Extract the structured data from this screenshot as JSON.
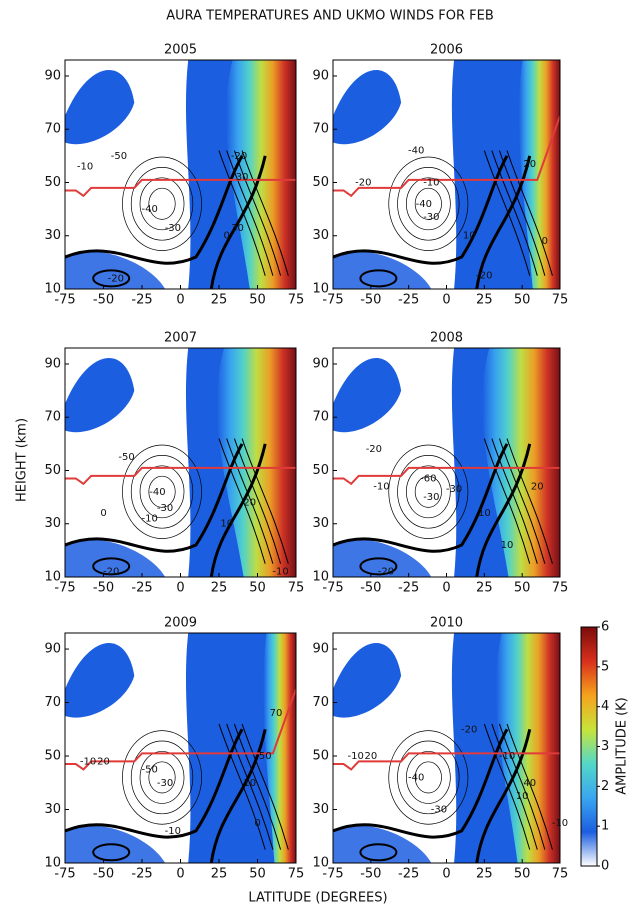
{
  "figure": {
    "title": "AURA TEMPERATURES AND UKMO WINDS FOR  FEB",
    "x_label": "LATITUDE (DEGREES)",
    "y_label": "HEIGHT (km)",
    "colorbar": {
      "label": "AMPLITUDE (K)",
      "lim": [
        0,
        6
      ],
      "ticks": [
        0,
        1,
        2,
        3,
        4,
        5,
        6
      ],
      "colors": [
        "#ffffff",
        "#1c5ee0",
        "#3aa6f0",
        "#54d8c8",
        "#c8e43a",
        "#f6a21c",
        "#d8301c",
        "#7a0c0c"
      ]
    }
  },
  "chart_data": [
    {
      "type": "contour",
      "title": "2005",
      "xlim": [
        -75,
        75
      ],
      "ylim": [
        10,
        96
      ],
      "xticks": [
        -75,
        -50,
        -25,
        0,
        25,
        50,
        75
      ],
      "yticks": [
        10,
        30,
        50,
        70,
        90
      ],
      "contour_labels": [
        "-10",
        "-50",
        "-40",
        "-30",
        "-20",
        "0",
        "30",
        "30",
        "-20"
      ]
    },
    {
      "type": "contour",
      "title": "2006",
      "xlim": [
        -75,
        75
      ],
      "ylim": [
        10,
        96
      ],
      "xticks": [
        -75,
        -50,
        -25,
        0,
        25,
        50,
        75
      ],
      "yticks": [
        10,
        30,
        50,
        70,
        90
      ],
      "contour_labels": [
        "-20",
        "-40",
        "-10",
        "-40",
        "-30",
        "10",
        "20",
        "0",
        "-20"
      ]
    },
    {
      "type": "contour",
      "title": "2007",
      "xlim": [
        -75,
        75
      ],
      "ylim": [
        10,
        96
      ],
      "xticks": [
        -75,
        -50,
        -25,
        0,
        25,
        50,
        75
      ],
      "yticks": [
        10,
        30,
        50,
        70,
        90
      ],
      "contour_labels": [
        "-50",
        "-40",
        "-30",
        "-10",
        "0",
        "10",
        "20",
        "-20",
        "-10"
      ]
    },
    {
      "type": "contour",
      "title": "2008",
      "xlim": [
        -75,
        75
      ],
      "ylim": [
        10,
        96
      ],
      "xticks": [
        -75,
        -50,
        -25,
        0,
        25,
        50,
        75
      ],
      "yticks": [
        10,
        30,
        50,
        70,
        90
      ],
      "contour_labels": [
        "-20",
        "-10",
        "-60",
        "-30",
        "-30",
        "20",
        "10",
        "10",
        "-20"
      ]
    },
    {
      "type": "contour",
      "title": "2009",
      "xlim": [
        -75,
        75
      ],
      "ylim": [
        10,
        96
      ],
      "xticks": [
        -75,
        -50,
        -25,
        0,
        25,
        50,
        75
      ],
      "yticks": [
        10,
        30,
        50,
        70,
        90
      ],
      "contour_labels": [
        "-10",
        "20",
        "-50",
        "-30",
        "-10",
        "70",
        "50",
        "10",
        "0"
      ]
    },
    {
      "type": "contour",
      "title": "2010",
      "xlim": [
        -75,
        75
      ],
      "ylim": [
        10,
        96
      ],
      "xticks": [
        -75,
        -50,
        -25,
        0,
        25,
        50,
        75
      ],
      "yticks": [
        10,
        30,
        50,
        70,
        90
      ],
      "contour_labels": [
        "-10",
        "20",
        "-20",
        "-40",
        "-30",
        "-10",
        "40",
        "10",
        "-10"
      ]
    }
  ]
}
